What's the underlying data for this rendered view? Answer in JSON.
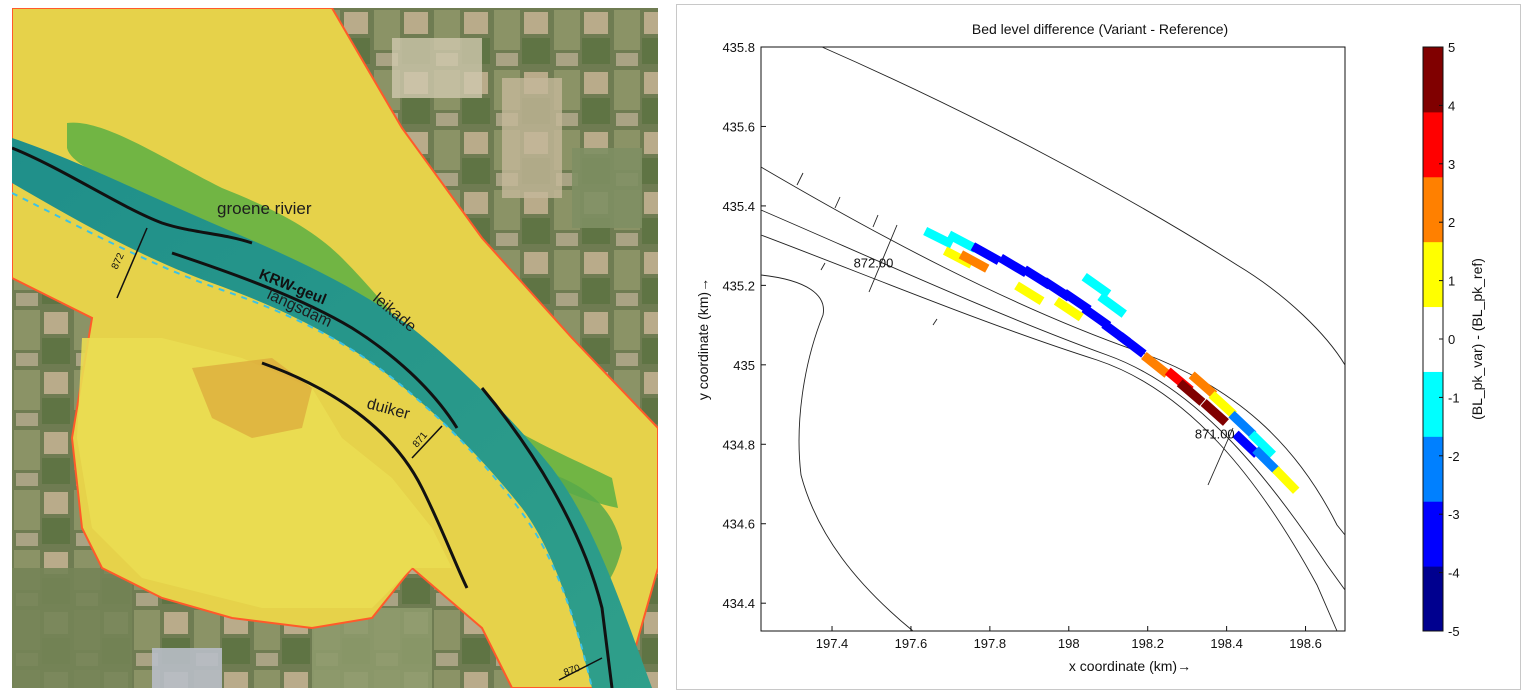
{
  "map": {
    "labels": {
      "groene_rivier": "groene rivier",
      "krw_geul": "KRW-geul",
      "leikade": "leikade",
      "langsdam": "langsdam",
      "duiker": "duiker",
      "km_872": "872",
      "km_871": "871",
      "km_870": "870"
    }
  },
  "chart_data": {
    "type": "heatmap",
    "title": "Bed level difference (Variant - Reference)",
    "xlabel": "x coordinate (km)→",
    "ylabel": "y coordinate (km)→",
    "xlim": [
      197.22,
      198.7
    ],
    "ylim": [
      434.33,
      435.8
    ],
    "xticks": [
      197.4,
      197.6,
      197.8,
      198,
      198.2,
      198.4,
      198.6
    ],
    "xtick_labels": [
      "197.4",
      "197.6",
      "197.8",
      "198",
      "198.2",
      "198.4",
      "198.6"
    ],
    "yticks": [
      434.4,
      434.6,
      434.8,
      435,
      435.2,
      435.4,
      435.6,
      435.8
    ],
    "ytick_labels": [
      "434.4",
      "434.6",
      "434.8",
      "435",
      "435.2",
      "435.4",
      "435.6",
      "435.8"
    ],
    "annotations": [
      {
        "text": "872.00",
        "x": 197.505,
        "y": 435.245
      },
      {
        "text": "871.00",
        "x": 198.37,
        "y": 434.815
      }
    ],
    "colorbar": {
      "label": "(BL_pk_var) - (BL_pk_ref)",
      "min": -5,
      "max": 5,
      "ticks": [
        5,
        4,
        3,
        2,
        1,
        0,
        -1,
        -2,
        -3,
        -4,
        -5
      ],
      "tick_labels": [
        "5",
        "4",
        "3",
        "2",
        "1",
        "0",
        "-1",
        "-2",
        "-3",
        "-4",
        "-5"
      ],
      "colors": [
        "#00008f",
        "#0000ff",
        "#0080ff",
        "#00ffff",
        "#ffffff",
        "#ffff00",
        "#ff8000",
        "#ff0000",
        "#800000"
      ]
    },
    "cells": [
      {
        "x": 197.67,
        "y": 435.32,
        "value": -1.5
      },
      {
        "x": 197.73,
        "y": 435.31,
        "value": -0.8
      },
      {
        "x": 197.66,
        "y": 435.28,
        "value": 0.5
      },
      {
        "x": 197.72,
        "y": 435.27,
        "value": 1.5
      },
      {
        "x": 197.76,
        "y": 435.26,
        "value": 2.2
      },
      {
        "x": 197.79,
        "y": 435.28,
        "value": -3.5
      },
      {
        "x": 197.86,
        "y": 435.25,
        "value": -3.2
      },
      {
        "x": 197.92,
        "y": 435.22,
        "value": -3.5
      },
      {
        "x": 197.97,
        "y": 435.19,
        "value": -3.6
      },
      {
        "x": 198.02,
        "y": 435.16,
        "value": -3.4
      },
      {
        "x": 198.07,
        "y": 435.12,
        "value": -3.6
      },
      {
        "x": 198.12,
        "y": 435.08,
        "value": -3.5
      },
      {
        "x": 198.16,
        "y": 435.05,
        "value": -3.4
      },
      {
        "x": 197.9,
        "y": 435.18,
        "value": 0.6
      },
      {
        "x": 198.0,
        "y": 435.14,
        "value": 0.8
      },
      {
        "x": 198.07,
        "y": 435.2,
        "value": -0.9
      },
      {
        "x": 198.11,
        "y": 435.15,
        "value": -1.0
      },
      {
        "x": 198.22,
        "y": 435.0,
        "value": 1.8
      },
      {
        "x": 198.28,
        "y": 434.96,
        "value": 3.2
      },
      {
        "x": 198.31,
        "y": 434.93,
        "value": 4.2
      },
      {
        "x": 198.37,
        "y": 434.88,
        "value": 4.8
      },
      {
        "x": 198.34,
        "y": 434.95,
        "value": 2.7
      },
      {
        "x": 198.39,
        "y": 434.9,
        "value": 0.6
      },
      {
        "x": 198.44,
        "y": 434.85,
        "value": -2.0
      },
      {
        "x": 198.49,
        "y": 434.8,
        "value": -1.6
      },
      {
        "x": 198.45,
        "y": 434.8,
        "value": -3.2
      },
      {
        "x": 198.5,
        "y": 434.76,
        "value": -2.4
      },
      {
        "x": 198.55,
        "y": 434.71,
        "value": 0.7
      }
    ]
  }
}
